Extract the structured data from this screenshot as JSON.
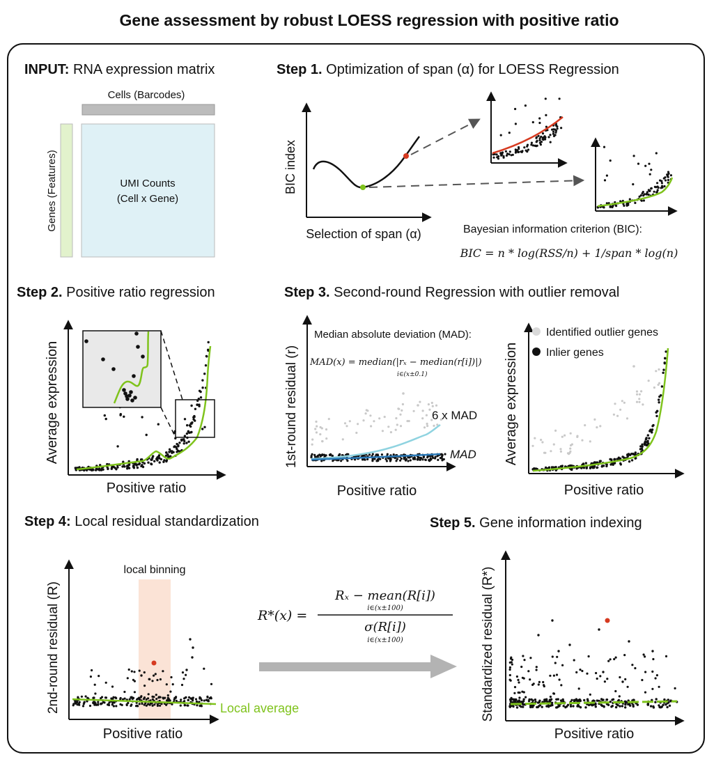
{
  "title": "Gene assessment by robust LOESS regression with positive ratio",
  "input": {
    "label_bold": "INPUT:",
    "label_rest": " RNA expression matrix",
    "cells_label": "Cells (Barcodes)",
    "genes_label": "Genes (Features)",
    "matrix_line1": "UMI Counts",
    "matrix_line2": "(Cell x Gene)"
  },
  "step1": {
    "label_bold": "Step 1.",
    "label_rest": " Optimization of span (α) for LOESS Regression",
    "ylabel": "BIC index",
    "xlabel": "Selection of span (α)",
    "bic_title": "Bayesian information criterion (BIC):",
    "bic_formula": "BIC = n * log(RSS/n) + 1/span * log(n)"
  },
  "step2": {
    "label_bold": "Step 2.",
    "label_rest": " Positive ratio regression",
    "ylabel": "Average expression",
    "xlabel": "Positive ratio"
  },
  "step3": {
    "label_bold": "Step 3.",
    "label_rest": " Second-round Regression with outlier removal",
    "mad_title": "Median absolute deviation (MAD):",
    "mad_formula": "MAD(x) = median(|rₓ − median(r[i])|)",
    "mad_sub": "i∈(x±0.1)",
    "left_ylabel": "1st-round residual (r)",
    "left_xlabel": "Positive ratio",
    "mad6_label": "6 x MAD",
    "mad_label": "MAD",
    "legend_outlier": "Identified outlier genes",
    "legend_inlier": "Inlier genes",
    "right_ylabel": "Average expression",
    "right_xlabel": "Positive ratio"
  },
  "step4": {
    "label_bold": "Step 4:",
    "label_rest": " Local residual standardization",
    "bin_label": "local binning",
    "ylabel": "2nd-round residual (R)",
    "xlabel": "Positive ratio",
    "avg_label": "Local average",
    "formula_lhs": "R*(x) =",
    "formula_num": "Rₓ − mean(R[i])",
    "formula_den": "σ(R[i])",
    "formula_sub": "i∈(x±100)"
  },
  "step5": {
    "label_bold": "Step 5.",
    "label_rest": " Gene information indexing",
    "ylabel": "Standardized residual (R*)",
    "xlabel": "Positive ratio"
  },
  "colors": {
    "green": "#7fc31c",
    "red": "#d63a20",
    "lightblue": "#8fd3e0",
    "blue": "#2a79b8",
    "matrix": "#dff1f6",
    "genes_bar": "#e2f2cc",
    "cells_bar": "#bcbcbc",
    "bin": "#fbe3d6",
    "arrow": "#b3b3b3"
  }
}
